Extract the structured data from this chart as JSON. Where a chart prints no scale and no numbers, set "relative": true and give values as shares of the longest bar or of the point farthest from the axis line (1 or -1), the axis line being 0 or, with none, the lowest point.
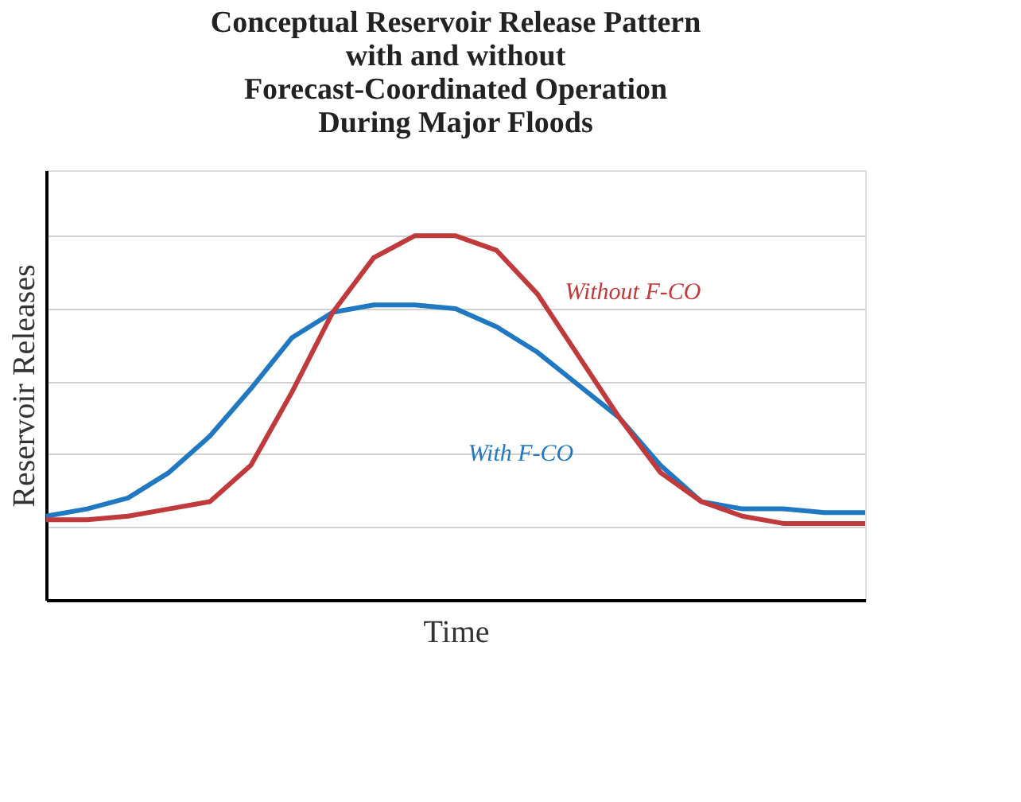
{
  "chart_data": {
    "type": "line",
    "title": "Conceptual Reservoir Release Pattern\nwith and without\nForecast-Coordinated Operation\nDuring Major Floods",
    "xlabel": "Time",
    "ylabel": "Reservoir Releases",
    "relative": true,
    "grid": "y",
    "legend": false,
    "marker": "none",
    "line_style": "solid",
    "categories": [
      null,
      null,
      null,
      null,
      null,
      null,
      null,
      null,
      null,
      null,
      null,
      null,
      null,
      null,
      null,
      null,
      null,
      null,
      null,
      null,
      null
    ],
    "series": [
      {
        "name": "With F-CO",
        "color": "#1f78c1",
        "values": [
          0.23,
          0.25,
          0.28,
          0.35,
          0.45,
          0.58,
          0.72,
          0.79,
          0.81,
          0.81,
          0.8,
          0.75,
          0.68,
          0.59,
          0.5,
          0.37,
          0.27,
          0.25,
          0.25,
          0.24,
          0.24
        ]
      },
      {
        "name": "Without F-CO",
        "color": "#c0393b",
        "values": [
          0.22,
          0.22,
          0.23,
          0.25,
          0.27,
          0.37,
          0.57,
          0.79,
          0.94,
          1.0,
          1.0,
          0.96,
          0.84,
          0.67,
          0.5,
          0.35,
          0.27,
          0.23,
          0.21,
          0.21,
          0.21
        ]
      }
    ]
  }
}
